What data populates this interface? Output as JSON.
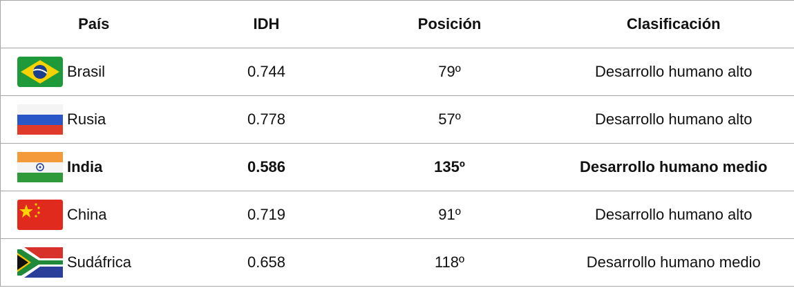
{
  "table": {
    "headers": [
      "País",
      "IDH",
      "Posición",
      "Clasificación"
    ],
    "rows": [
      [
        "Brasil",
        "0.744",
        "79º",
        "Desarrollo humano alto"
      ],
      [
        "Rusia",
        "0.778",
        "57º",
        "Desarrollo humano alto"
      ],
      [
        "India",
        "0.586",
        "135º",
        "Desarrollo humano medio"
      ],
      [
        "China",
        "0.719",
        "91º",
        "Desarrollo humano alto"
      ],
      [
        "Sudáfrica",
        "0.658",
        "118º",
        "Desarrollo humano medio"
      ]
    ]
  }
}
